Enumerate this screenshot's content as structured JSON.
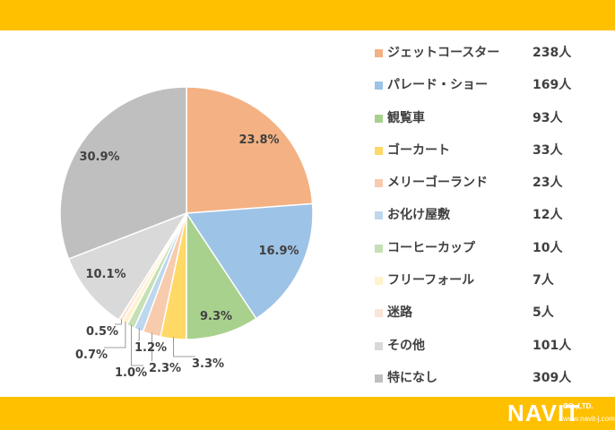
{
  "colors": {
    "band": "#FFC000",
    "label_text": "#404040"
  },
  "logo": {
    "name": "NAVIT",
    "company": "CO.,LTD.",
    "url": "www.navit-j.com"
  },
  "chart_data": {
    "type": "pie",
    "title": "",
    "start": "12 o'clock",
    "direction": "clockwise",
    "legend_position": "right",
    "slices": [
      {
        "name": "ジェットコースター",
        "count": "238人",
        "value": 238,
        "percent_label": "23.8%",
        "color": "#F4B183"
      },
      {
        "name": "パレード・ショー",
        "count": "169人",
        "value": 169,
        "percent_label": "16.9%",
        "color": "#9DC3E6"
      },
      {
        "name": "観覧車",
        "count": "93人",
        "value": 93,
        "percent_label": "9.3%",
        "color": "#A9D18E"
      },
      {
        "name": "ゴーカート",
        "count": "33人",
        "value": 33,
        "percent_label": "3.3%",
        "color": "#FFD966"
      },
      {
        "name": "メリーゴーランド",
        "count": "23人",
        "value": 23,
        "percent_label": "2.3%",
        "color": "#F8CBAD"
      },
      {
        "name": "お化け屋敷",
        "count": "12人",
        "value": 12,
        "percent_label": "1.2%",
        "color": "#BDD7EE"
      },
      {
        "name": "コーヒーカップ",
        "count": "10人",
        "value": 10,
        "percent_label": "1.0%",
        "color": "#C5E0B4"
      },
      {
        "name": "フリーフォール",
        "count": "7人",
        "value": 7,
        "percent_label": "0.7%",
        "color": "#FFF2CC"
      },
      {
        "name": "迷路",
        "count": "5人",
        "value": 5,
        "percent_label": "0.5%",
        "color": "#FBE5D6"
      },
      {
        "name": "その他",
        "count": "101人",
        "value": 101,
        "percent_label": "10.1%",
        "color": "#D9D9D9"
      },
      {
        "name": "特になし",
        "count": "309人",
        "value": 309,
        "percent_label": "30.9%",
        "color": "#BFBFBF"
      }
    ]
  }
}
